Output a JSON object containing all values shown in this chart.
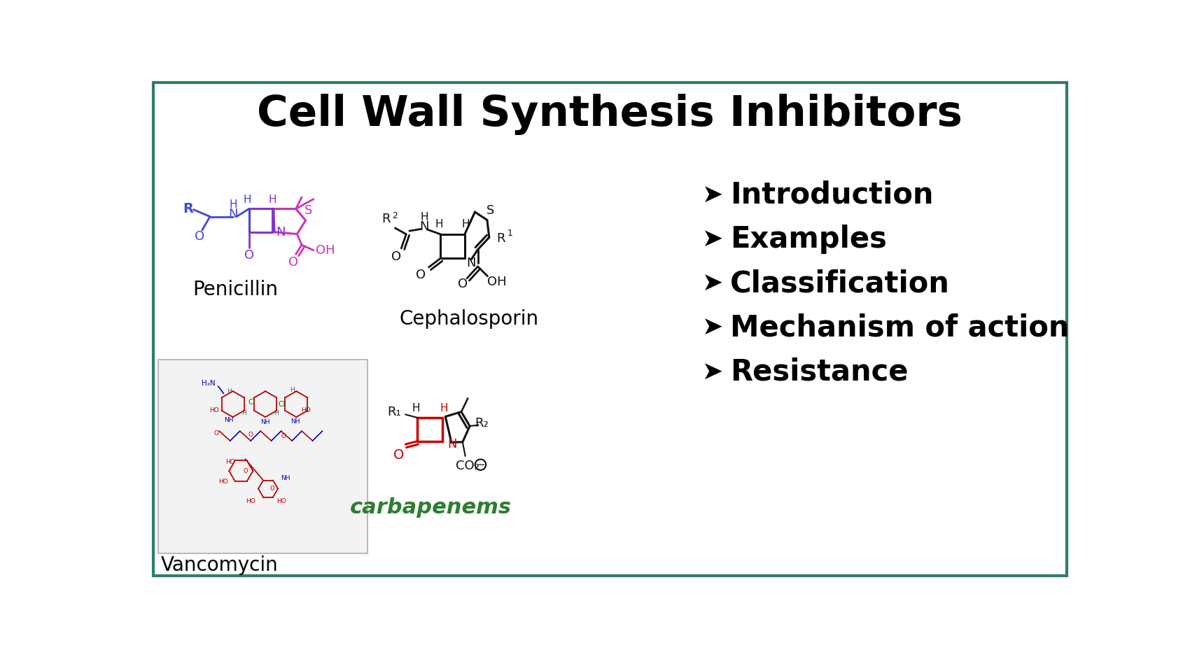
{
  "title": "Cell Wall Synthesis Inhibitors",
  "title_fontsize": 44,
  "title_fontweight": "bold",
  "title_color": "#000000",
  "background_color": "#ffffff",
  "border_color": "#2e7d6e",
  "bullet_items": [
    "Introduction",
    "Examples",
    "Classification",
    "Mechanism of action",
    "Resistance"
  ],
  "bullet_fontsize": 30,
  "bullet_fontweight": "bold",
  "bullet_color": "#000000",
  "penicillin_label": "Penicillin",
  "cephalosporin_label": "Cephalosporin",
  "vancomycin_label": "Vancomycin",
  "carbapenems_label": "carbapenems",
  "label_fontsize": 20,
  "carbapenems_color": "#2e7d32",
  "vancomycin_box_color": "#f0f0f0",
  "blue": "#4444dd",
  "purple": "#8833cc",
  "magenta": "#cc33bb",
  "black": "#111111",
  "red": "#cc0000"
}
